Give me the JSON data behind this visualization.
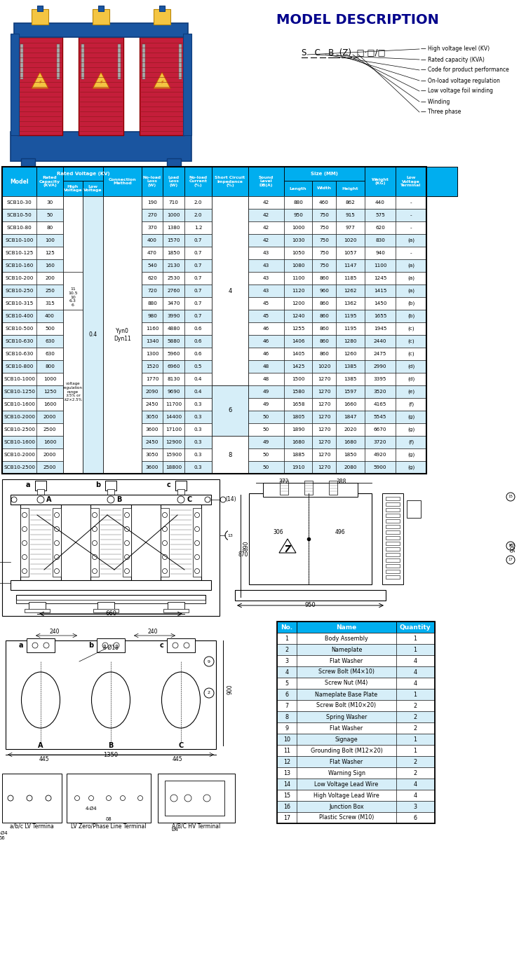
{
  "title": "MODEL DESCRIPTION",
  "header_bg": "#00AEEF",
  "header_text": "#FFFFFF",
  "alt_row_bg": "#D6EEF8",
  "rows": [
    [
      "SCB10-30",
      30,
      190,
      710,
      2.0,
      42,
      880,
      460,
      862,
      440,
      "-"
    ],
    [
      "SCB10-50",
      50,
      270,
      1000,
      2.0,
      42,
      950,
      750,
      915,
      575,
      "-"
    ],
    [
      "SCB10-80",
      80,
      370,
      1380,
      1.2,
      42,
      1000,
      750,
      977,
      620,
      "-"
    ],
    [
      "SCB10-100",
      100,
      400,
      1570,
      0.7,
      42,
      1030,
      750,
      1020,
      830,
      "(a)"
    ],
    [
      "SCB10-125",
      125,
      470,
      1850,
      0.7,
      43,
      1050,
      750,
      1057,
      940,
      "-"
    ],
    [
      "SCB10-160",
      160,
      540,
      2130,
      0.7,
      43,
      1080,
      750,
      1147,
      1100,
      "(a)"
    ],
    [
      "SCB10-200",
      200,
      620,
      2530,
      0.7,
      43,
      1100,
      860,
      1185,
      1245,
      "(a)"
    ],
    [
      "SCB10-250",
      250,
      720,
      2760,
      0.7,
      43,
      1120,
      960,
      1262,
      1415,
      "(a)"
    ],
    [
      "SCB10-315",
      315,
      880,
      3470,
      0.7,
      45,
      1200,
      860,
      1362,
      1450,
      "(b)"
    ],
    [
      "SCB10-400",
      400,
      980,
      3990,
      0.7,
      45,
      1240,
      860,
      1195,
      1655,
      "(b)"
    ],
    [
      "SCB10-500",
      500,
      1160,
      4880,
      0.6,
      46,
      1255,
      860,
      1195,
      1945,
      "(c)"
    ],
    [
      "SCB10-630",
      630,
      1340,
      5880,
      0.6,
      46,
      1406,
      860,
      1280,
      2440,
      "(c)"
    ],
    [
      "SCB10-630",
      630,
      1300,
      5960,
      0.6,
      46,
      1405,
      860,
      1260,
      2475,
      "(c)"
    ],
    [
      "SCB10-800",
      800,
      1520,
      6960,
      0.5,
      48,
      1425,
      1020,
      1385,
      2990,
      "(d)"
    ],
    [
      "SCB10-1000",
      1000,
      1770,
      8130,
      0.4,
      48,
      1500,
      1270,
      1385,
      3395,
      "(d)"
    ],
    [
      "SCB10-1250",
      1250,
      2090,
      9690,
      0.4,
      49,
      1580,
      1270,
      1597,
      3520,
      "(e)"
    ],
    [
      "SCB10-1600",
      1600,
      2450,
      11700,
      0.3,
      49,
      1658,
      1270,
      1660,
      4165,
      "(f)"
    ],
    [
      "SCB10-2000",
      2000,
      3050,
      14400,
      0.3,
      50,
      1805,
      1270,
      1847,
      5545,
      "(g)"
    ],
    [
      "SCB10-2500",
      2500,
      3600,
      17100,
      0.3,
      50,
      1890,
      1270,
      2020,
      6670,
      "(g)"
    ],
    [
      "SCB10-1600",
      1600,
      2450,
      12900,
      0.3,
      49,
      1680,
      1270,
      1680,
      3720,
      "(f)"
    ],
    [
      "SCB10-2000",
      2000,
      3050,
      15900,
      0.3,
      50,
      1885,
      1270,
      1850,
      4920,
      "(g)"
    ],
    [
      "SCB10-2500",
      2500,
      3600,
      18800,
      0.3,
      50,
      1910,
      1270,
      2080,
      5900,
      "(g)"
    ]
  ],
  "parts_table": [
    [
      1,
      "Body Assembly",
      1
    ],
    [
      2,
      "Nameplate",
      1
    ],
    [
      3,
      "Flat Washer",
      4
    ],
    [
      4,
      "Screw Bolt (M4×10)",
      4
    ],
    [
      5,
      "Screw Nut (M4)",
      4
    ],
    [
      6,
      "Nameplate Base Plate",
      1
    ],
    [
      7,
      "Screw Bolt (M10×20)",
      2
    ],
    [
      8,
      "Spring Washer",
      2
    ],
    [
      9,
      "Flat Washer",
      2
    ],
    [
      10,
      "Signage",
      1
    ],
    [
      11,
      "Grounding Bolt (M12×20)",
      1
    ],
    [
      12,
      "Flat Washer",
      2
    ],
    [
      13,
      "Warning Sign",
      2
    ],
    [
      14,
      "Low Voltage Lead Wire",
      4
    ],
    [
      15,
      "High Voltage Lead Wire",
      4
    ],
    [
      16,
      "Junction Box",
      3
    ],
    [
      17,
      "Plastic Screw (M10)",
      6
    ]
  ],
  "model_labels": [
    "High voltage level (KV)",
    "Rated capacity (KVA)",
    "Code for product performance",
    "On-load voltage regulation",
    "Low voltage foil winding",
    "Winding",
    "Three phase"
  ]
}
